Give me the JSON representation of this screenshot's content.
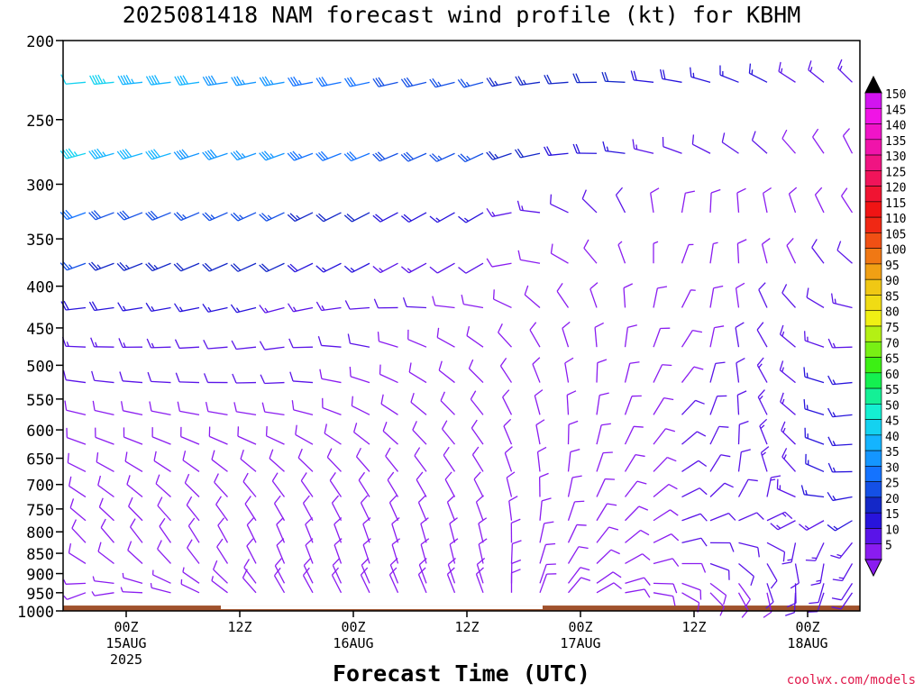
{
  "header": {
    "title": "2025081418 NAM forecast wind profile (kt) for KBHM"
  },
  "footer": {
    "credit": "coolwx.com/models"
  },
  "chart_data": {
    "type": "wind-barb profile",
    "title": "2025081418 NAM forecast wind profile (kt) for KBHM",
    "xlabel": "Forecast Time (UTC)",
    "ylabel": "",
    "y_axis": {
      "scale": "log",
      "range": [
        1000,
        200
      ],
      "ticks": [
        200,
        250,
        300,
        350,
        400,
        450,
        500,
        550,
        600,
        650,
        700,
        750,
        800,
        850,
        900,
        950,
        1000
      ]
    },
    "x_axis": {
      "range_hours": [
        0,
        84
      ],
      "ticks": [
        {
          "label": "00Z",
          "sub": [
            "15AUG",
            "2025"
          ]
        },
        {
          "label": "12Z",
          "sub": []
        },
        {
          "label": "00Z",
          "sub": [
            "16AUG"
          ]
        },
        {
          "label": "12Z",
          "sub": []
        },
        {
          "label": "00Z",
          "sub": [
            "17AUG"
          ]
        },
        {
          "label": "12Z",
          "sub": []
        },
        {
          "label": "00Z",
          "sub": [
            "18AUG"
          ]
        }
      ]
    },
    "colorbar": {
      "levels": [
        5,
        10,
        15,
        20,
        25,
        30,
        35,
        40,
        45,
        50,
        55,
        60,
        65,
        70,
        75,
        80,
        85,
        90,
        95,
        100,
        105,
        110,
        115,
        120,
        125,
        130,
        135,
        140,
        145,
        150
      ],
      "colors": [
        "#8a1cf0",
        "#5a14e8",
        "#2814dc",
        "#1428c8",
        "#1450e6",
        "#1473ff",
        "#1496ff",
        "#14b4ff",
        "#14d2f0",
        "#14f0d2",
        "#14f096",
        "#14f050",
        "#3cf014",
        "#78f014",
        "#b4f014",
        "#f0f014",
        "#f0dc14",
        "#f0c814",
        "#f0a014",
        "#f07814",
        "#f05014",
        "#f02814",
        "#f01414",
        "#f01432",
        "#f0145a",
        "#f01482",
        "#f014aa",
        "#f014c8",
        "#f014e6",
        "#d214f0"
      ]
    },
    "surface_color": "#a0522d",
    "series": [
      {
        "level": 225,
        "hours": [
          0,
          72
        ],
        "speed_kt": [
          48,
          35,
          25,
          18,
          12
        ],
        "direction_deg": [
          265,
          260,
          255,
          280,
          320
        ]
      },
      {
        "level": 275,
        "hours": [
          0,
          72
        ],
        "speed_kt": [
          45,
          35,
          25,
          12,
          8
        ],
        "direction_deg": [
          255,
          250,
          245,
          290,
          340
        ]
      },
      {
        "level": 325,
        "hours": [
          0,
          72
        ],
        "speed_kt": [
          30,
          25,
          15,
          8,
          10
        ],
        "direction_deg": [
          250,
          245,
          240,
          10,
          320
        ]
      },
      {
        "level": 375,
        "hours": [
          0,
          72
        ],
        "speed_kt": [
          25,
          20,
          10,
          6,
          12
        ],
        "direction_deg": [
          250,
          245,
          240,
          20,
          300
        ]
      },
      {
        "level": 450,
        "hours": [
          0,
          72
        ],
        "speed_kt": [
          15,
          12,
          8,
          8,
          15
        ],
        "direction_deg": [
          270,
          260,
          300,
          30,
          250
        ]
      },
      {
        "level": 550,
        "hours": [
          0,
          72
        ],
        "speed_kt": [
          10,
          10,
          8,
          10,
          18
        ],
        "direction_deg": [
          280,
          270,
          320,
          40,
          240
        ]
      },
      {
        "level": 700,
        "hours": [
          0,
          72
        ],
        "speed_kt": [
          8,
          8,
          8,
          10,
          18
        ],
        "direction_deg": [
          300,
          320,
          330,
          60,
          245
        ]
      },
      {
        "level": 850,
        "hours": [
          0,
          72
        ],
        "speed_kt": [
          8,
          8,
          10,
          10,
          15
        ],
        "direction_deg": [
          320,
          340,
          350,
          80,
          230
        ]
      },
      {
        "level": 950,
        "hours": [
          0,
          72
        ],
        "speed_kt": [
          6,
          8,
          8,
          8,
          12
        ],
        "direction_deg": [
          250,
          330,
          340,
          120,
          230
        ]
      }
    ]
  }
}
